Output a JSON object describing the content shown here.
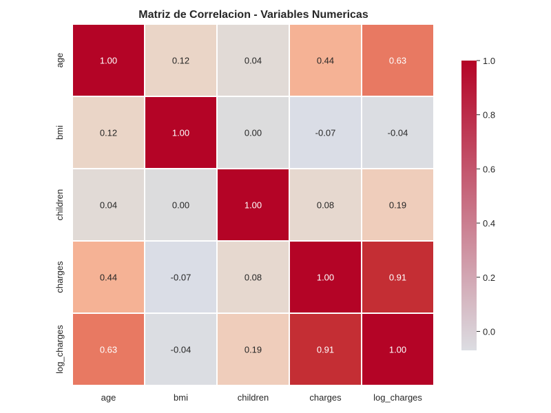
{
  "chart_data": {
    "type": "heatmap",
    "title": "Matriz de Correlacion - Variables Numericas",
    "x_labels": [
      "age",
      "bmi",
      "children",
      "charges",
      "log_charges"
    ],
    "y_labels": [
      "age",
      "bmi",
      "children",
      "charges",
      "log_charges"
    ],
    "values": [
      [
        1.0,
        0.12,
        0.04,
        0.44,
        0.63
      ],
      [
        0.12,
        1.0,
        0.0,
        -0.07,
        -0.04
      ],
      [
        0.04,
        0.0,
        1.0,
        0.08,
        0.19
      ],
      [
        0.44,
        -0.07,
        0.08,
        1.0,
        0.91
      ],
      [
        0.63,
        -0.04,
        0.19,
        0.91,
        1.0
      ]
    ],
    "value_format": "0.00",
    "colormap": "coolwarm",
    "vmin": -0.07,
    "vmax": 1.0,
    "center": 0.0,
    "colorbar": {
      "ticks": [
        0.0,
        0.2,
        0.4,
        0.6,
        0.8,
        1.0
      ],
      "tick_labels": [
        "0.0",
        "0.2",
        "0.4",
        "0.6",
        "0.8",
        "1.0"
      ],
      "placement": "right"
    },
    "grid": false
  }
}
